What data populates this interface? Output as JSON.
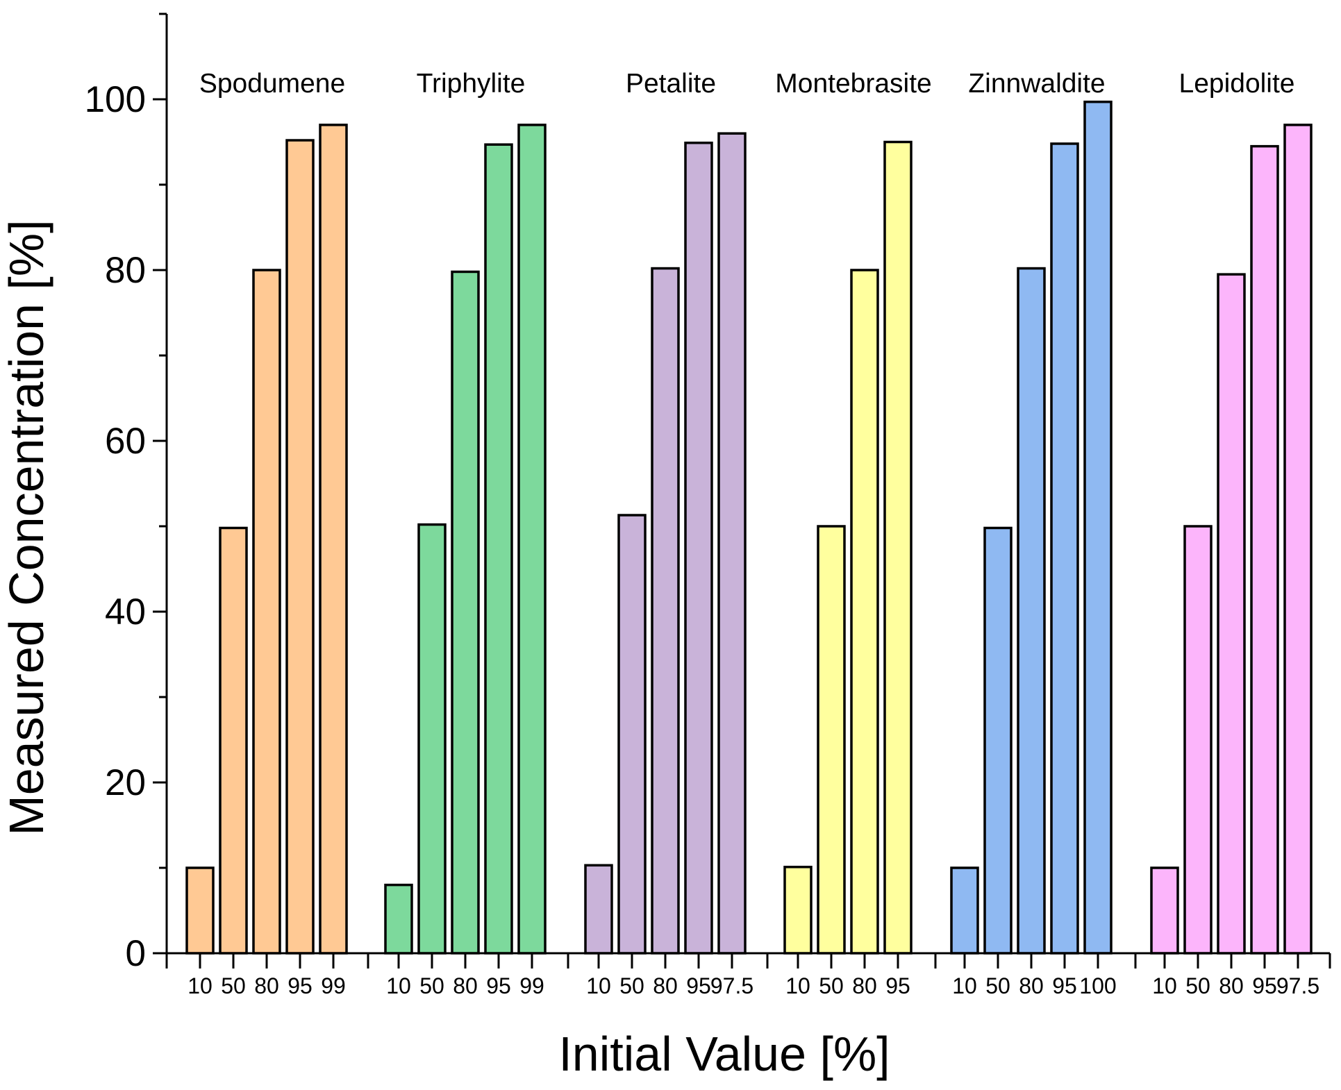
{
  "chart_data": {
    "type": "bar",
    "xlabel": "Initial Value [%]",
    "ylabel": "Measured Concentration [%]",
    "ylim": [
      0,
      110
    ],
    "yticks": [
      0,
      20,
      40,
      60,
      80,
      100
    ],
    "grid": false,
    "legend": "none",
    "groups": [
      {
        "name": "Spodumene",
        "color": "#ffc994",
        "categories": [
          "10",
          "50",
          "80",
          "95",
          "99"
        ],
        "values": [
          10,
          49.8,
          80,
          95.2,
          97
        ]
      },
      {
        "name": "Triphylite",
        "color": "#7dd99c",
        "categories": [
          "10",
          "50",
          "80",
          "95",
          "99"
        ],
        "values": [
          8,
          50.2,
          79.8,
          94.7,
          97
        ]
      },
      {
        "name": "Petalite",
        "color": "#c9b3d9",
        "categories": [
          "10",
          "50",
          "80",
          "95",
          "97.5"
        ],
        "values": [
          10.3,
          51.3,
          80.2,
          94.9,
          96
        ]
      },
      {
        "name": "Montebrasite",
        "color": "#ffff9e",
        "categories": [
          "10",
          "50",
          "80",
          "95"
        ],
        "values": [
          10.1,
          50,
          80,
          95
        ]
      },
      {
        "name": "Zinnwaldite",
        "color": "#8fb9f2",
        "categories": [
          "10",
          "50",
          "80",
          "95",
          "100"
        ],
        "values": [
          10,
          49.8,
          80.2,
          94.8,
          99.7
        ]
      },
      {
        "name": "Lepidolite",
        "color": "#fcb5fb",
        "categories": [
          "10",
          "50",
          "80",
          "95",
          "97.5"
        ],
        "values": [
          10,
          50,
          79.5,
          94.5,
          97
        ]
      }
    ]
  }
}
